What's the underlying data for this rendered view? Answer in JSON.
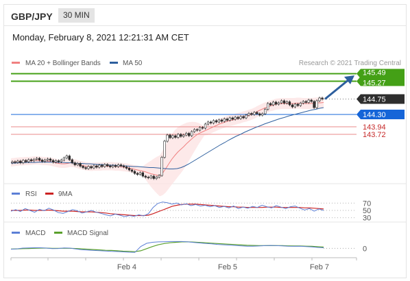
{
  "header": {
    "pair": "GBP/JPY",
    "timeframe": "30 MIN",
    "datetime": "Monday, February 8, 2021 12:21:31 AM CET"
  },
  "colors": {
    "ma20": "#f08080",
    "ma50": "#2d5f9e",
    "bollinger_fill": "#fde3e3",
    "resistance": "#44a016",
    "support": "#1565d8",
    "last_price": "#2e2e2e",
    "pivot_line": "#e98a8a",
    "candle": "#2b2b2b",
    "rsi": "#5b7fd6",
    "rsi_ma": "#cc2222",
    "macd": "#5b7fd6",
    "macd_signal": "#5aa02c",
    "arrow": "#2d5f9e"
  },
  "chart_data": [
    {
      "type": "candlestick",
      "panel": "price",
      "legend": [
        {
          "name": "MA 20 + Bollinger Bands",
          "color": "#f08080"
        },
        {
          "name": "MA 50",
          "color": "#2d5f9e"
        }
      ],
      "legend_placement": "top-left",
      "credit": "Research © 2021 Trading Central",
      "ylim": [
        142.4,
        145.6
      ],
      "x_ticks": [
        "Feb 4",
        "Feb 5",
        "Feb 7"
      ],
      "close_series": [
        142.92,
        142.9,
        142.94,
        142.89,
        142.96,
        142.92,
        142.98,
        142.95,
        142.99,
        143.02,
        142.97,
        142.93,
        142.97,
        143.0,
        142.96,
        142.91,
        142.95,
        142.92,
        142.97,
        143.03,
        143.09,
        142.98,
        142.89,
        142.83,
        142.87,
        142.79,
        142.75,
        142.72,
        142.78,
        142.74,
        142.8,
        142.76,
        142.82,
        142.78,
        142.84,
        142.8,
        142.77,
        142.81,
        142.78,
        142.83,
        142.8,
        142.77,
        142.73,
        142.68,
        142.64,
        142.58,
        142.55,
        142.6,
        142.5,
        142.47,
        142.45,
        142.5,
        142.43,
        142.47,
        142.52,
        143.05,
        143.52,
        143.7,
        143.62,
        143.68,
        143.63,
        143.72,
        143.66,
        143.7,
        143.75,
        143.68,
        143.8,
        143.86,
        143.84,
        143.92,
        143.9,
        144.02,
        144.08,
        144.05,
        144.12,
        144.08,
        144.14,
        144.1,
        144.17,
        144.13,
        144.2,
        144.16,
        144.22,
        144.18,
        144.24,
        144.2,
        144.28,
        144.33,
        144.3,
        144.36,
        144.32,
        144.28,
        144.32,
        144.45,
        144.62,
        144.58,
        144.66,
        144.6,
        144.64,
        144.7,
        144.63,
        144.67,
        144.58,
        144.52,
        144.6,
        144.56,
        144.63,
        144.68,
        144.65,
        144.72,
        144.68,
        144.5,
        144.7,
        144.78,
        144.75
      ],
      "series": [
        {
          "name": "MA 20",
          "values": [
            142.9,
            142.91,
            142.92,
            142.93,
            142.93,
            142.94,
            142.94,
            142.95,
            142.96,
            142.96,
            142.95,
            142.94,
            142.94,
            142.93,
            142.91,
            142.89,
            142.87,
            142.86,
            142.86,
            142.87,
            142.89,
            142.88,
            142.86,
            142.83,
            142.81,
            142.79,
            142.78,
            142.77,
            142.78,
            142.78,
            142.78,
            142.79,
            142.79,
            142.79,
            142.79,
            142.78,
            142.78,
            142.77,
            142.76,
            142.75,
            142.73,
            142.71,
            142.69,
            142.67,
            142.65,
            142.63,
            142.6,
            142.57,
            142.55,
            142.53,
            142.51,
            142.6,
            142.72,
            142.86,
            142.99,
            143.1,
            143.2,
            143.28,
            143.36,
            143.45,
            143.53,
            143.61,
            143.68,
            143.74,
            143.78,
            143.82,
            143.86,
            143.9,
            143.94,
            143.98,
            144.02,
            144.05,
            144.08,
            144.11,
            144.13,
            144.15,
            144.18,
            144.2,
            144.23,
            144.25,
            144.28,
            144.31,
            144.35,
            144.4,
            144.44,
            144.48,
            144.51,
            144.55,
            144.57,
            144.6,
            144.61,
            144.62,
            144.62,
            144.62,
            144.62,
            144.62,
            144.63,
            144.63,
            144.62,
            144.62,
            144.62,
            144.62,
            144.63,
            144.64,
            144.64,
            144.65
          ]
        },
        {
          "name": "MA 50",
          "values": [
            142.88,
            142.88,
            142.89,
            142.89,
            142.9,
            142.9,
            142.9,
            142.91,
            142.91,
            142.91,
            142.91,
            142.91,
            142.9,
            142.9,
            142.89,
            142.89,
            142.88,
            142.87,
            142.87,
            142.86,
            142.86,
            142.85,
            142.84,
            142.84,
            142.83,
            142.82,
            142.82,
            142.81,
            142.8,
            142.8,
            142.79,
            142.78,
            142.78,
            142.77,
            142.76,
            142.75,
            142.75,
            142.74,
            142.73,
            142.72,
            142.71,
            142.71,
            142.72,
            142.75,
            142.8,
            142.86,
            142.93,
            143.0,
            143.07,
            143.14,
            143.21,
            143.28,
            143.35,
            143.42,
            143.48,
            143.55,
            143.61,
            143.67,
            143.72,
            143.78,
            143.83,
            143.88,
            143.93,
            143.97,
            144.02,
            144.06,
            144.1,
            144.14,
            144.18,
            144.21,
            144.25,
            144.28,
            144.31,
            144.34,
            144.37,
            144.4,
            144.43,
            144.45,
            144.48,
            144.5
          ]
        }
      ],
      "levels": [
        {
          "label": "145.49",
          "value": 145.49,
          "kind": "resistance"
        },
        {
          "label": "145.27",
          "value": 145.27,
          "kind": "resistance"
        },
        {
          "label": "144.75",
          "value": 144.75,
          "kind": "last"
        },
        {
          "label": "144.30",
          "value": 144.3,
          "kind": "support"
        },
        {
          "label": "143.94",
          "value": 143.94,
          "kind": "pivot"
        },
        {
          "label": "143.72",
          "value": 143.72,
          "kind": "pivot"
        }
      ]
    },
    {
      "type": "line",
      "panel": "rsi",
      "legend": [
        {
          "name": "RSI",
          "color": "#5b7fd6"
        },
        {
          "name": "9MA",
          "color": "#cc2222"
        }
      ],
      "ylim": [
        22,
        78
      ],
      "y_ticks": [
        "70",
        "50",
        "30"
      ],
      "series": [
        {
          "name": "RSI",
          "values": [
            48,
            52,
            47,
            55,
            50,
            45,
            53,
            49,
            56,
            51,
            44,
            42,
            47,
            52,
            49,
            43,
            46,
            50,
            45,
            42,
            38,
            35,
            40,
            37,
            33,
            36,
            34,
            38,
            35,
            41,
            58,
            69,
            73,
            71,
            67,
            70,
            65,
            68,
            63,
            66,
            62,
            64,
            60,
            63,
            58,
            61,
            57,
            62,
            55,
            59,
            56,
            61,
            58,
            64,
            60,
            57,
            63,
            59,
            55,
            60,
            62,
            56,
            51,
            55,
            48,
            54,
            50
          ]
        },
        {
          "name": "9MA",
          "values": [
            50,
            50,
            50,
            51,
            51,
            50,
            50,
            50,
            51,
            50,
            49,
            48,
            48,
            48,
            47,
            46,
            46,
            46,
            45,
            44,
            43,
            41,
            40,
            39,
            38,
            37,
            36,
            36,
            36,
            37,
            41,
            46,
            51,
            56,
            61,
            64,
            66,
            67,
            67,
            67,
            66,
            65,
            64,
            63,
            62,
            61,
            60,
            60,
            59,
            59,
            58,
            58,
            58,
            58,
            59,
            59,
            59,
            58,
            58,
            58,
            58,
            58,
            57,
            57,
            56,
            55,
            54
          ]
        }
      ]
    },
    {
      "type": "line",
      "panel": "macd",
      "legend": [
        {
          "name": "MACD",
          "color": "#5b7fd6"
        },
        {
          "name": "MACD Signal",
          "color": "#5aa02c"
        }
      ],
      "ylim": [
        -0.45,
        0.55
      ],
      "y_ticks": [
        "0"
      ],
      "series": [
        {
          "name": "MACD",
          "values": [
            -0.05,
            -0.03,
            0.01,
            0.02,
            0.03,
            0.03,
            0.01,
            -0.02,
            -0.01,
            0.02,
            0.01,
            -0.04,
            -0.08,
            -0.1,
            -0.12,
            -0.13,
            -0.15,
            -0.17,
            -0.18,
            -0.2,
            -0.22,
            -0.23,
            0.1,
            0.28,
            0.34,
            0.36,
            0.37,
            0.38,
            0.38,
            0.38,
            0.36,
            0.33,
            0.3,
            0.27,
            0.25,
            0.22,
            0.2,
            0.18,
            0.16,
            0.14,
            0.12,
            0.12,
            0.13,
            0.15,
            0.16,
            0.15,
            0.14,
            0.12,
            0.11,
            0.12,
            0.1,
            0.08,
            0.05,
            0.03
          ]
        },
        {
          "name": "MACD Signal",
          "values": [
            -0.04,
            -0.03,
            -0.02,
            -0.01,
            0.0,
            0.01,
            0.01,
            0.0,
            0.0,
            0.0,
            0.0,
            -0.01,
            -0.03,
            -0.05,
            -0.07,
            -0.09,
            -0.11,
            -0.12,
            -0.14,
            -0.16,
            -0.17,
            -0.19,
            -0.14,
            -0.02,
            0.1,
            0.2,
            0.27,
            0.31,
            0.34,
            0.36,
            0.36,
            0.35,
            0.33,
            0.31,
            0.29,
            0.27,
            0.25,
            0.23,
            0.21,
            0.19,
            0.17,
            0.16,
            0.15,
            0.15,
            0.15,
            0.15,
            0.15,
            0.14,
            0.13,
            0.13,
            0.12,
            0.11,
            0.09,
            0.07
          ]
        }
      ]
    }
  ]
}
